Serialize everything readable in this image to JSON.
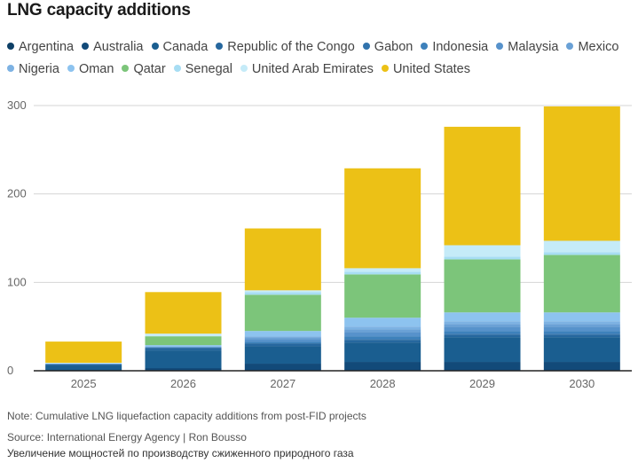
{
  "colors": {
    "Argentina": "#0d3f66",
    "Australia": "#124a79",
    "Canada": "#1a5e90",
    "Republic of the Congo": "#26679e",
    "Gabon": "#3173ad",
    "Indonesia": "#3d81bb",
    "Malaysia": "#5792cb",
    "Mexico": "#6aa1d6",
    "Nigeria": "#7db2e3",
    "Oman": "#8dc3ef",
    "Qatar": "#7cc57a",
    "Senegal": "#a7ddf3",
    "United Arab Emirates": "#c5ebf8",
    "United States": "#ecc116"
  },
  "chart_data": {
    "type": "bar",
    "stacked": true,
    "title": "LNG capacity additions",
    "xlabel": "",
    "ylabel": "",
    "ylim": [
      0,
      300
    ],
    "yticks": [
      0,
      100,
      200,
      300
    ],
    "grid": true,
    "legend_position": "top",
    "categories": [
      "2025",
      "2026",
      "2027",
      "2028",
      "2029",
      "2030"
    ],
    "series": [
      {
        "name": "Argentina",
        "values": [
          0,
          0,
          0,
          0,
          0,
          0
        ]
      },
      {
        "name": "Australia",
        "values": [
          1,
          3,
          8,
          10,
          10,
          10
        ]
      },
      {
        "name": "Canada",
        "values": [
          5,
          20,
          20,
          22,
          28,
          28
        ]
      },
      {
        "name": "Republic of the Congo",
        "values": [
          1,
          3,
          3,
          3,
          3,
          3
        ]
      },
      {
        "name": "Gabon",
        "values": [
          0,
          0,
          0,
          1,
          1,
          1
        ]
      },
      {
        "name": "Indonesia",
        "values": [
          0,
          0,
          2,
          3,
          3,
          3
        ]
      },
      {
        "name": "Malaysia",
        "values": [
          1,
          1,
          3,
          5,
          5,
          5
        ]
      },
      {
        "name": "Mexico",
        "values": [
          0,
          0,
          2,
          3,
          3,
          3
        ]
      },
      {
        "name": "Nigeria",
        "values": [
          0,
          0,
          1,
          3,
          3,
          3
        ]
      },
      {
        "name": "Oman",
        "values": [
          0,
          2,
          6,
          10,
          10,
          10
        ]
      },
      {
        "name": "Qatar",
        "values": [
          0,
          10,
          41,
          49,
          60,
          65
        ]
      },
      {
        "name": "Senegal",
        "values": [
          0,
          0,
          3,
          3,
          3,
          3
        ]
      },
      {
        "name": "United Arab Emirates",
        "values": [
          1,
          3,
          2,
          4,
          13,
          13
        ]
      },
      {
        "name": "United States",
        "values": [
          24,
          47,
          70,
          113,
          134,
          152
        ]
      }
    ],
    "note": "Note: Cumulative LNG liquefaction capacity additions from post-FID projects",
    "source": "Source: International Energy Agency | Ron Bousso",
    "caption": "Увеличение мощностей по производству сжиженного природного газа"
  }
}
